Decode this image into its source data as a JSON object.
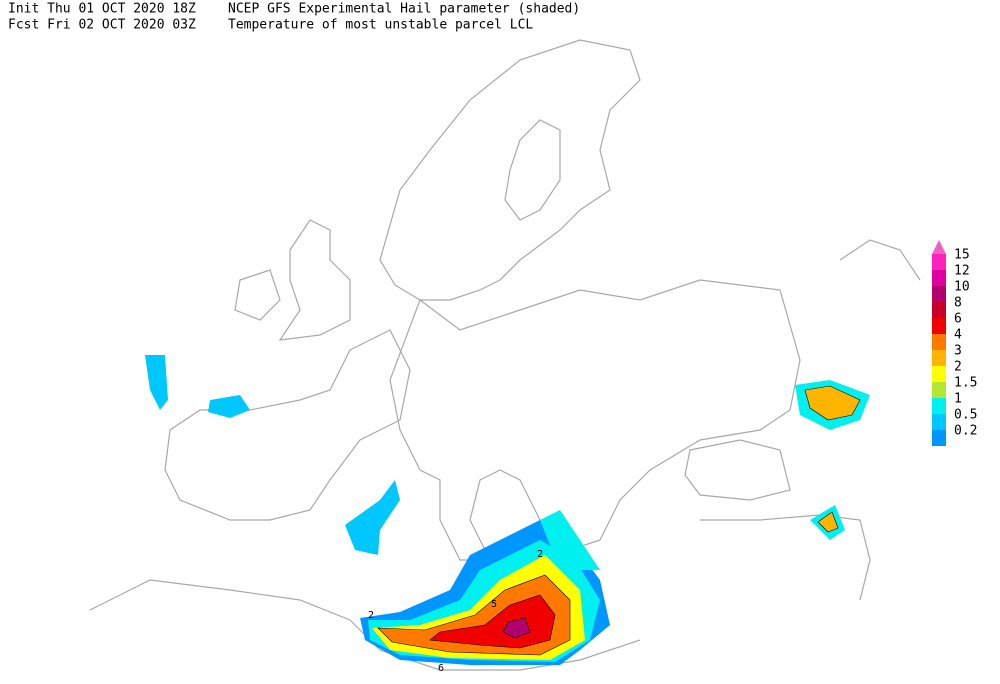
{
  "header": {
    "init": "Init  Thu 01 OCT 2020 18Z",
    "fcst": "Fcst Fri 02 OCT 2020 03Z",
    "title": "NCEP GFS Experimental Hail parameter (shaded)",
    "subtitle": "Temperature of most unstable parcel LCL"
  },
  "legend": {
    "items": [
      {
        "label": "15",
        "color": "#ff20c0"
      },
      {
        "label": "12",
        "color": "#e000a0"
      },
      {
        "label": "10",
        "color": "#b0006e"
      },
      {
        "label": "8",
        "color": "#c80028"
      },
      {
        "label": "6",
        "color": "#f00000"
      },
      {
        "label": "4",
        "color": "#ff7800"
      },
      {
        "label": "3",
        "color": "#ffb400"
      },
      {
        "label": "2",
        "color": "#ffff00"
      },
      {
        "label": "1.5",
        "color": "#b4e632"
      },
      {
        "label": "1",
        "color": "#00f0f0"
      },
      {
        "label": "0.5",
        "color": "#00c8ff"
      },
      {
        "label": "0.2",
        "color": "#0096ff"
      }
    ]
  },
  "contour_labels": [
    "2",
    "5",
    "6",
    "2"
  ]
}
